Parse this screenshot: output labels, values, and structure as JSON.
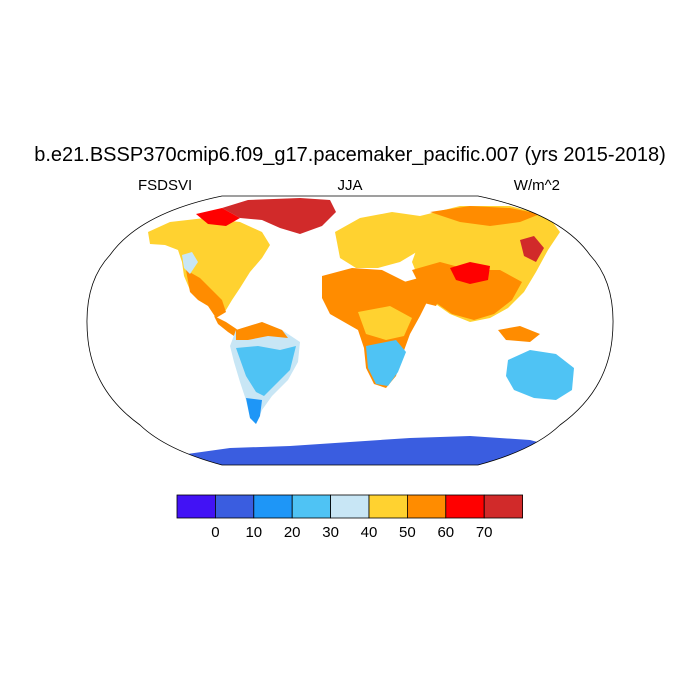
{
  "title": "b.e21.BSSP370cmip6.f09_g17.pacemaker_pacific.007 (yrs 2015-2018)",
  "subtitle_left": "FSDSVI",
  "subtitle_center": "JJA",
  "subtitle_right": "W/m^2",
  "colorbar": {
    "colors": [
      "#4212f5",
      "#3a5de0",
      "#1e96f7",
      "#4fc3f4",
      "#c8e6f5",
      "#ffd230",
      "#ff8c00",
      "#ff0000",
      "#d12a2a"
    ],
    "ticks": [
      "0",
      "10",
      "20",
      "30",
      "40",
      "50",
      "60",
      "70"
    ]
  },
  "map": {
    "projection": "Robinson",
    "ocean_color": "#ffffff",
    "coastline_color": "#000000"
  }
}
